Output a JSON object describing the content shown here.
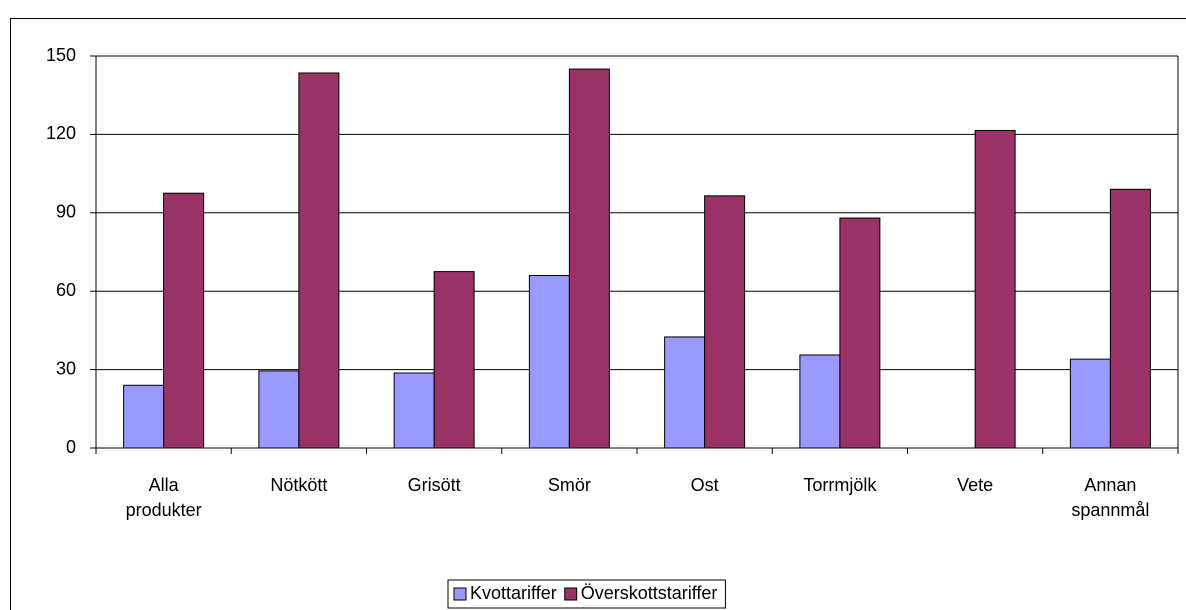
{
  "chart_data": {
    "type": "bar",
    "categories": [
      "Alla produkter",
      "Nötkött",
      "Grisött",
      "Smör",
      "Ost",
      "Torrmjölk",
      "Vete",
      "Annan spannmål"
    ],
    "series": [
      {
        "name": "Kvottariffer",
        "color": "#9999ff",
        "values": [
          24,
          29.5,
          28.7,
          66,
          42.5,
          35.6,
          null,
          34
        ]
      },
      {
        "name": "Överskottstariffer",
        "color": "#993366",
        "values": [
          97.5,
          143.5,
          67.5,
          145,
          96.5,
          88,
          121.5,
          99
        ]
      }
    ],
    "ylim": [
      0,
      150
    ],
    "yticks": [
      0,
      30,
      60,
      90,
      120,
      150
    ],
    "grid": true,
    "legend": "bottom"
  }
}
